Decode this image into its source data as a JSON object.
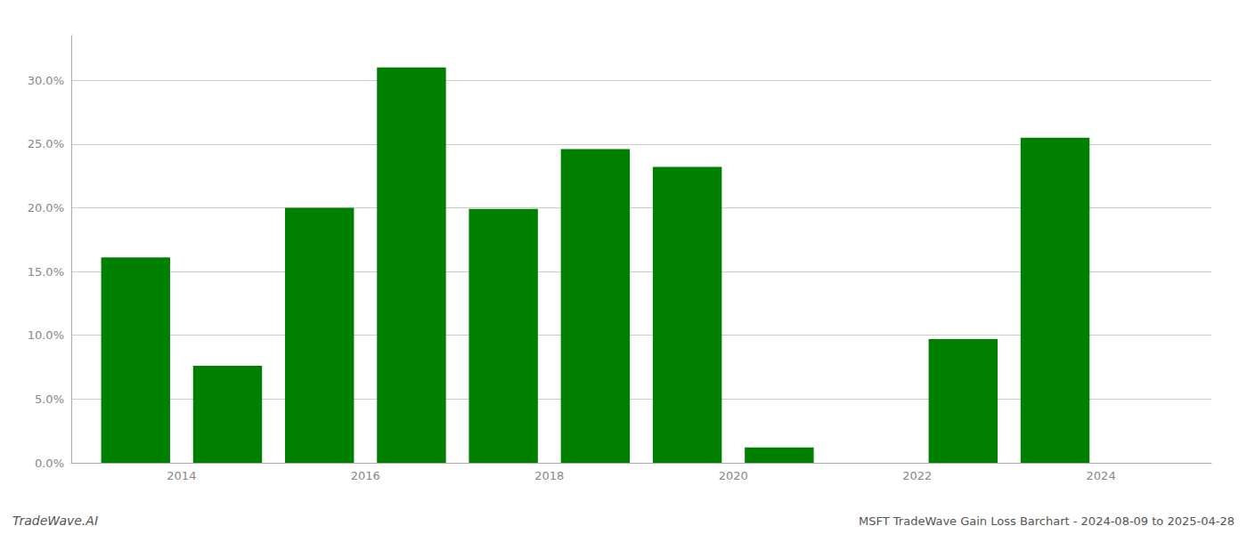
{
  "chart_data": {
    "type": "bar",
    "x": [
      2013,
      2014,
      2015,
      2016,
      2017,
      2018,
      2019,
      2020,
      2022,
      2023
    ],
    "values": [
      0.161,
      0.076,
      0.2,
      0.31,
      0.199,
      0.246,
      0.232,
      0.012,
      0.097,
      0.255
    ],
    "color": "#008000",
    "xlim": [
      2012.3,
      2024.7
    ],
    "xticks": [
      {
        "value": 2013.5,
        "label": "2014"
      },
      {
        "value": 2015.5,
        "label": "2016"
      },
      {
        "value": 2017.5,
        "label": "2018"
      },
      {
        "value": 2019.5,
        "label": "2020"
      },
      {
        "value": 2021.5,
        "label": "2022"
      },
      {
        "value": 2023.5,
        "label": "2024"
      }
    ],
    "ylim": [
      0,
      0.335
    ],
    "yticks": [
      {
        "value": 0.0,
        "label": "0.0%"
      },
      {
        "value": 0.05,
        "label": "5.0%"
      },
      {
        "value": 0.1,
        "label": "10.0%"
      },
      {
        "value": 0.15,
        "label": "15.0%"
      },
      {
        "value": 0.2,
        "label": "20.0%"
      },
      {
        "value": 0.25,
        "label": "25.0%"
      },
      {
        "value": 0.3,
        "label": "30.0%"
      }
    ],
    "grid": true,
    "annotations": [
      "TradeWave.AI",
      "MSFT TradeWave Gain Loss Barchart - 2024-08-09 to 2025-04-28"
    ]
  }
}
